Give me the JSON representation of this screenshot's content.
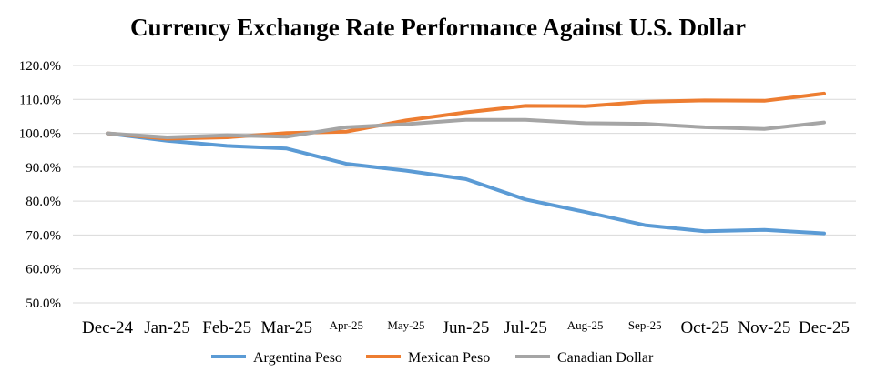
{
  "chart_data": {
    "type": "line",
    "title": "Currency Exchange Rate Performance Against U.S. Dollar",
    "xlabel": "",
    "ylabel": "",
    "categories": [
      "Dec-24",
      "Jan-25",
      "Feb-25",
      "Mar-25",
      "Apr-25",
      "May-25",
      "Jun-25",
      "Jul-25",
      "Aug-25",
      "Sep-25",
      "Oct-25",
      "Nov-25",
      "Dec-25"
    ],
    "small_categories": [
      "Apr-25",
      "May-25",
      "Aug-25",
      "Sep-25"
    ],
    "y_ticks": [
      "50.0%",
      "60.0%",
      "70.0%",
      "80.0%",
      "90.0%",
      "100.0%",
      "110.0%",
      "120.0%"
    ],
    "ylim": [
      50,
      120
    ],
    "grid": true,
    "legend_position": "bottom",
    "series": [
      {
        "name": "Argentina Peso",
        "color": "#5b9bd5",
        "values": [
          100.0,
          97.8,
          96.3,
          95.5,
          91.0,
          89.0,
          86.5,
          80.5,
          76.8,
          72.9,
          71.1,
          71.5,
          70.5
        ]
      },
      {
        "name": "Mexican Peso",
        "color": "#ed7d31",
        "values": [
          100.0,
          98.4,
          98.8,
          100.1,
          100.5,
          103.8,
          106.2,
          108.1,
          108.0,
          109.3,
          109.7,
          109.6,
          111.7
        ]
      },
      {
        "name": "Canadian Dollar",
        "color": "#a5a5a5",
        "values": [
          100.0,
          98.8,
          99.4,
          99.0,
          101.8,
          102.7,
          104.0,
          104.0,
          103.0,
          102.8,
          101.8,
          101.3,
          103.2
        ]
      }
    ]
  }
}
